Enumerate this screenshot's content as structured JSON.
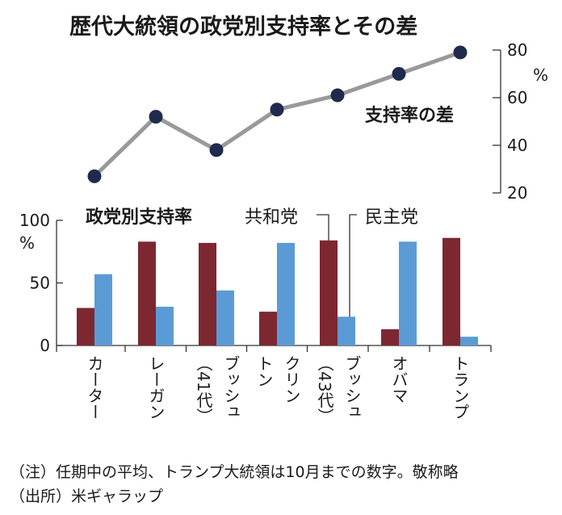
{
  "title": "歴代大統領の政党別支持率とその差",
  "chart_data": [
    {
      "type": "line",
      "title": "支持率の差",
      "unit": "%",
      "categories": [
        "カーター",
        "レーガン",
        "ブッシュ（41代）",
        "クリントン",
        "ブッシュ（43代）",
        "オバマ",
        "トランプ"
      ],
      "values": [
        27,
        52,
        38,
        55,
        61,
        70,
        79
      ],
      "ylim": [
        20,
        80
      ],
      "yticks": [
        "80",
        "60",
        "40",
        "20"
      ],
      "color": "#999999",
      "marker_color": "#1f2a4d",
      "axis_position": "right"
    },
    {
      "type": "bar",
      "title": "政党別支持率",
      "unit": "%",
      "categories": [
        "カーター",
        "レーガン",
        "ブッシュ（41代）",
        "クリントン",
        "ブッシュ（43代）",
        "オバマ",
        "トランプ"
      ],
      "series": [
        {
          "name": "共和党",
          "color": "#7d2731",
          "values": [
            30,
            83,
            82,
            27,
            84,
            13,
            86
          ]
        },
        {
          "name": "民主党",
          "color": "#5b9bd5",
          "values": [
            57,
            31,
            44,
            82,
            23,
            83,
            7
          ]
        }
      ],
      "ylim": [
        0,
        100
      ],
      "yticks": [
        "100",
        "50",
        "0"
      ]
    }
  ],
  "x_labels": [
    {
      "lines": [
        "カーター"
      ]
    },
    {
      "lines": [
        "レーガン"
      ]
    },
    {
      "lines": [
        "ブッシュ",
        "（41代）"
      ]
    },
    {
      "lines": [
        "クリン",
        "トン"
      ]
    },
    {
      "lines": [
        "ブッシュ",
        "（43代）"
      ]
    },
    {
      "lines": [
        "オバマ"
      ]
    },
    {
      "lines": [
        "トランプ"
      ]
    }
  ],
  "notes": {
    "note": "（注）任期中の平均、トランプ大統領は10月までの数字。敬称略",
    "source": "（出所）米ギャラップ"
  }
}
